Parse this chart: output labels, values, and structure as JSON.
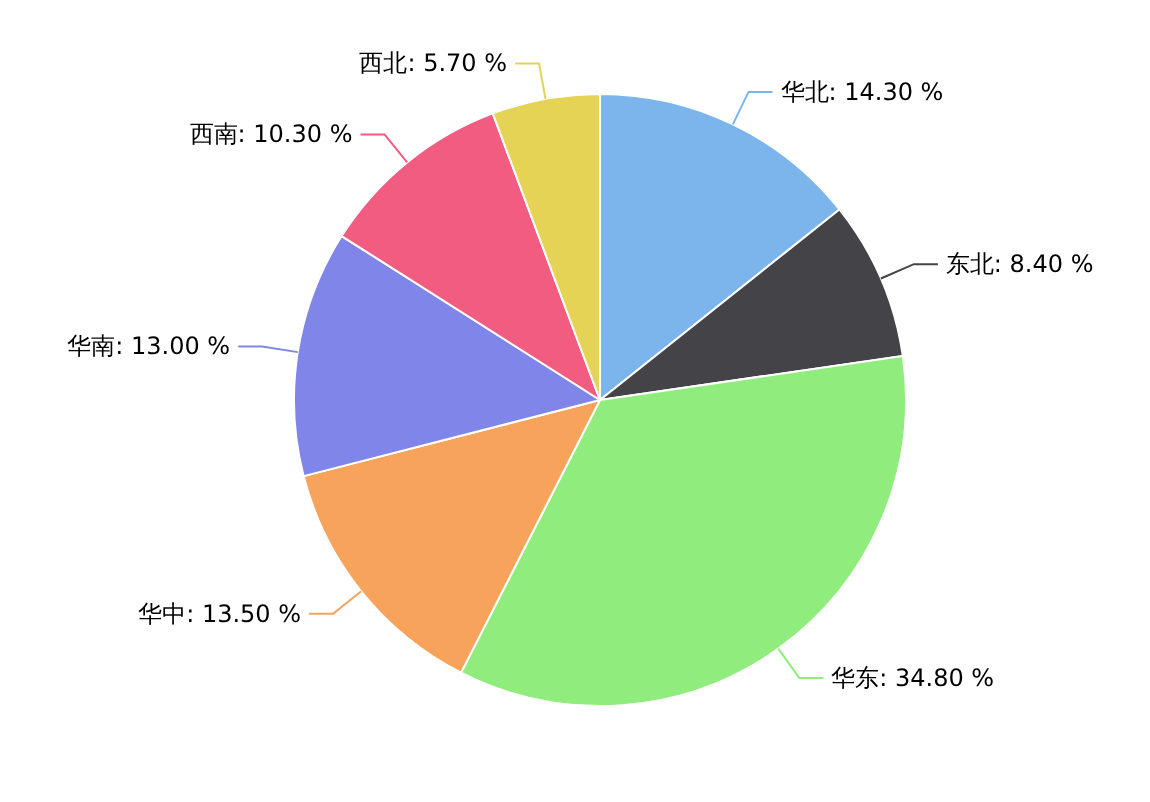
{
  "chart_data": {
    "type": "pie",
    "categories": [
      "华北",
      "东北",
      "华东",
      "华中",
      "华南",
      "西南",
      "西北"
    ],
    "values": [
      14.3,
      8.4,
      34.8,
      13.5,
      13.0,
      10.3,
      5.7
    ],
    "value_labels": [
      "14.30 %",
      "8.40 %",
      "34.80 %",
      "13.50 %",
      "13.00 %",
      "10.30 %",
      "5.70 %"
    ],
    "colors": [
      "#7cb5ec",
      "#434348",
      "#90ed7d",
      "#f7a35c",
      "#8085e9",
      "#f15c80",
      "#e4d354"
    ]
  }
}
